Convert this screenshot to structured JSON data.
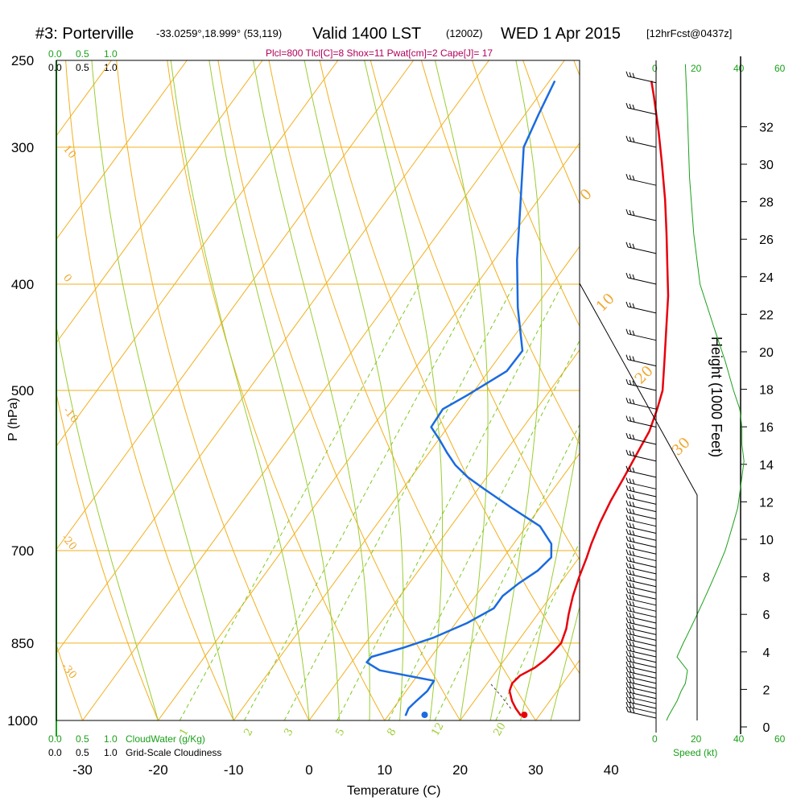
{
  "title": {
    "station": "#3: Porterville",
    "coords": "-33.0259°,18.999° (53,119)",
    "valid": "Valid 1400 LST",
    "zulu": "(1200Z)",
    "date": "WED 1 Apr 2015",
    "forecast": "[12hrFcst@0437z]"
  },
  "indices": "Plcl=800 Tlcl[C]=8 Shox=11 Pwat[cm]=2 Cape[J]= 17",
  "cloud_scale_top": {
    "values": [
      "0.0",
      "0.5",
      "1.0"
    ]
  },
  "cloud_scale_bottom": {
    "values": [
      "0.0",
      "0.5",
      "1.0"
    ],
    "cloud_water_label": "CloudWater (g/Kg)",
    "cloudiness_label": "Grid-Scale Cloudiness"
  },
  "speed_axis": {
    "label": "Speed (kt)",
    "ticks": [
      "0",
      "20",
      "40",
      "60"
    ]
  },
  "chart_data": {
    "type": "line",
    "subtype": "skew-t log-p sounding",
    "xlabel": "Temperature (C)",
    "ylabel": "P (hPa)",
    "y2label": "Height (1000 Feet)",
    "pressure_ticks": [
      250,
      300,
      400,
      500,
      700,
      850,
      1000
    ],
    "temperature_ticks": [
      -30,
      -20,
      -10,
      0,
      10,
      20,
      30,
      40
    ],
    "height_ticks": [
      0,
      2,
      4,
      6,
      8,
      10,
      12,
      14,
      16,
      18,
      20,
      22,
      24,
      26,
      28,
      30,
      32
    ],
    "pressure_range": [
      250,
      1050
    ],
    "temperature_range_at_bottom": [
      -34,
      46
    ],
    "series": [
      {
        "role": "temperature",
        "color": "#e8000b",
        "points": [
          [
            990,
            27.6
          ],
          [
            975,
            26.2
          ],
          [
            960,
            25.0
          ],
          [
            940,
            23.7
          ],
          [
            925,
            23.3
          ],
          [
            910,
            23.6
          ],
          [
            895,
            24.8
          ],
          [
            880,
            25.4
          ],
          [
            865,
            25.7
          ],
          [
            850,
            25.9
          ],
          [
            825,
            25.2
          ],
          [
            800,
            24.1
          ],
          [
            770,
            22.9
          ],
          [
            740,
            21.9
          ],
          [
            710,
            21.0
          ],
          [
            690,
            20.3
          ],
          [
            660,
            19.4
          ],
          [
            630,
            18.7
          ],
          [
            600,
            18.2
          ],
          [
            570,
            17.6
          ],
          [
            545,
            17.1
          ],
          [
            520,
            16.0
          ],
          [
            500,
            14.9
          ],
          [
            470,
            12.3
          ],
          [
            440,
            9.5
          ],
          [
            410,
            6.5
          ],
          [
            385,
            3.5
          ],
          [
            360,
            0.3
          ],
          [
            335,
            -3.2
          ],
          [
            310,
            -7.2
          ],
          [
            290,
            -10.7
          ],
          [
            270,
            -14.6
          ],
          [
            261,
            -16.5
          ]
        ]
      },
      {
        "role": "dewpoint",
        "color": "#1a6be0",
        "points": [
          [
            990,
            12.3
          ],
          [
            975,
            12.0
          ],
          [
            960,
            12.3
          ],
          [
            940,
            12.8
          ],
          [
            920,
            12.7
          ],
          [
            900,
            4.5
          ],
          [
            885,
            2.0
          ],
          [
            875,
            2.1
          ],
          [
            858,
            5.5
          ],
          [
            840,
            8.5
          ],
          [
            815,
            11.5
          ],
          [
            790,
            13.6
          ],
          [
            770,
            13.6
          ],
          [
            750,
            14.5
          ],
          [
            730,
            15.8
          ],
          [
            710,
            16.3
          ],
          [
            690,
            15.0
          ],
          [
            665,
            11.8
          ],
          [
            640,
            6.3
          ],
          [
            615,
            0.8
          ],
          [
            600,
            -2.5
          ],
          [
            585,
            -5.3
          ],
          [
            570,
            -7.6
          ],
          [
            555,
            -9.8
          ],
          [
            540,
            -12.2
          ],
          [
            520,
            -12.4
          ],
          [
            505,
            -10.5
          ],
          [
            480,
            -7.6
          ],
          [
            460,
            -7.5
          ],
          [
            420,
            -12.3
          ],
          [
            380,
            -17.0
          ],
          [
            340,
            -21.7
          ],
          [
            300,
            -27.0
          ],
          [
            280,
            -28.2
          ],
          [
            261,
            -29.3
          ]
        ]
      }
    ],
    "surface_marks": {
      "temperature_C": 28.5,
      "dewpoint_C": 15.3
    },
    "dry_adiabat_labels": [
      "10",
      "0",
      "-10",
      "-20",
      "-30"
    ],
    "moist_adiabat_labels": [
      "0",
      "10",
      "20",
      "30"
    ],
    "mixing_ratio_labels": [
      "1",
      "2",
      "3",
      "5",
      "8",
      "12",
      "20"
    ],
    "wind_speed_kt": [
      [
        1000,
        5
      ],
      [
        990,
        6
      ],
      [
        975,
        8
      ],
      [
        960,
        10
      ],
      [
        940,
        12
      ],
      [
        925,
        14
      ],
      [
        900,
        15
      ],
      [
        875,
        10
      ],
      [
        850,
        13
      ],
      [
        835,
        15
      ],
      [
        820,
        17
      ],
      [
        805,
        19
      ],
      [
        790,
        21
      ],
      [
        775,
        23
      ],
      [
        760,
        25
      ],
      [
        745,
        27
      ],
      [
        730,
        29
      ],
      [
        715,
        31
      ],
      [
        700,
        33
      ],
      [
        680,
        35
      ],
      [
        660,
        37
      ],
      [
        640,
        39
      ],
      [
        620,
        40
      ],
      [
        600,
        41
      ],
      [
        580,
        42
      ],
      [
        560,
        41
      ],
      [
        540,
        41
      ],
      [
        520,
        40
      ],
      [
        500,
        37
      ],
      [
        470,
        33
      ],
      [
        440,
        28
      ],
      [
        400,
        21
      ],
      [
        360,
        18
      ],
      [
        320,
        16
      ],
      [
        280,
        15
      ],
      [
        252,
        14
      ]
    ],
    "wind_barbs_p": [
      995,
      985,
      975,
      965,
      955,
      945,
      935,
      925,
      915,
      905,
      895,
      885,
      875,
      865,
      855,
      845,
      835,
      825,
      815,
      805,
      795,
      785,
      775,
      765,
      755,
      745,
      735,
      725,
      715,
      705,
      695,
      685,
      675,
      665,
      655,
      645,
      635,
      625,
      615,
      600,
      580,
      560,
      540,
      520,
      500,
      475,
      450,
      425,
      400,
      375,
      350,
      325,
      300,
      280,
      262
    ]
  }
}
